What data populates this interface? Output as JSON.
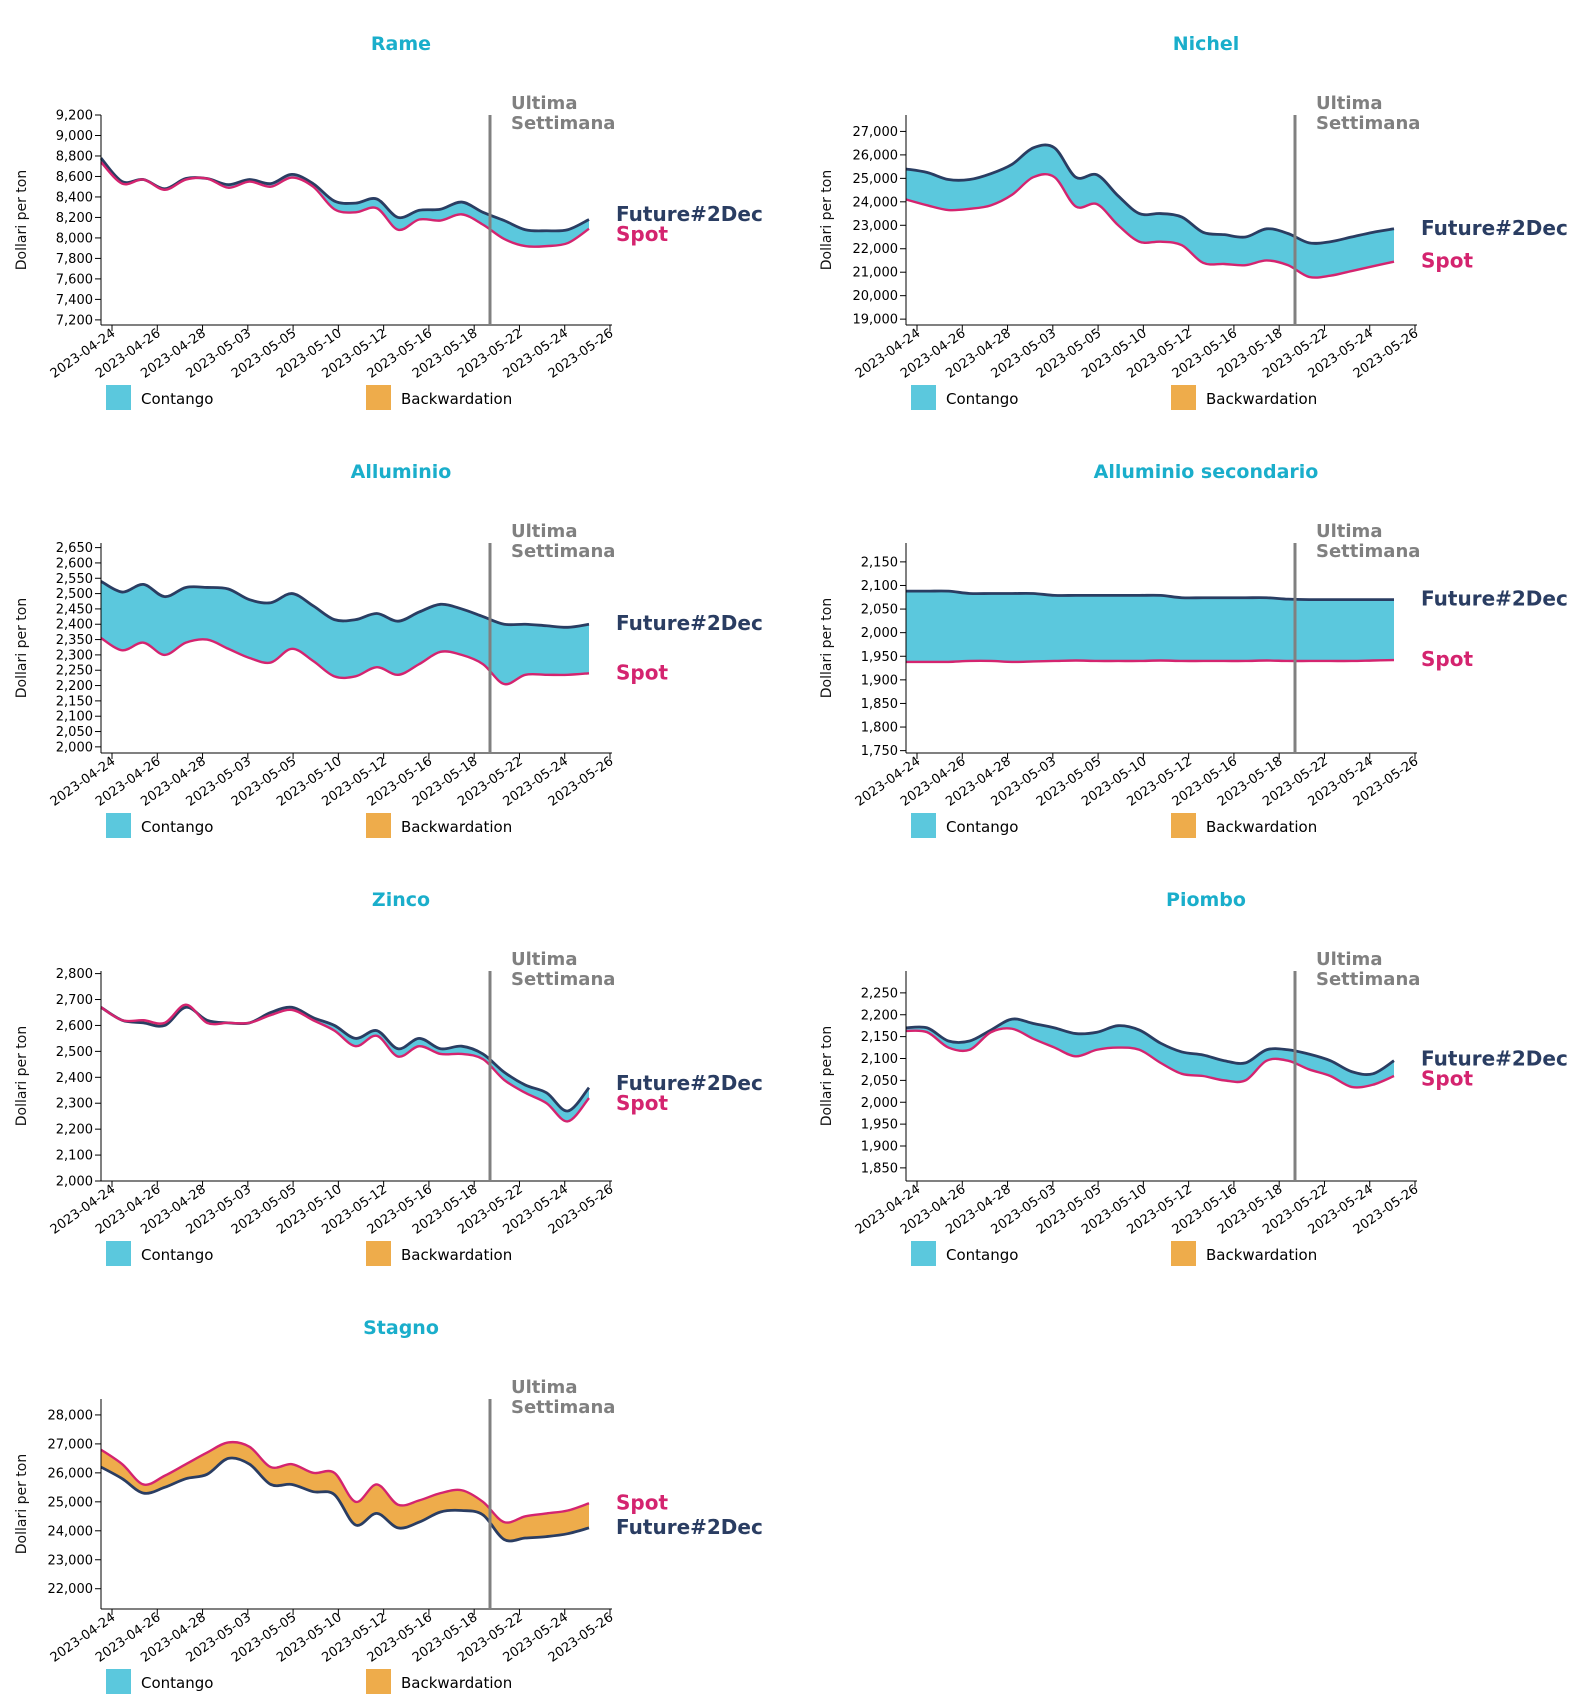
{
  "common": {
    "ylabel": "Dollari per ton",
    "annotation": [
      "Ultima",
      "Settimana"
    ],
    "spot_label": "Spot",
    "future_label": "Future#2Dec",
    "legend": [
      "Contango",
      "Backwardation"
    ],
    "x_ticks": [
      "2023-04-24",
      "2023-04-26",
      "2023-04-28",
      "2023-05-03",
      "2023-05-05",
      "2023-05-10",
      "2023-05-12",
      "2023-05-16",
      "2023-05-18",
      "2023-05-22",
      "2023-05-24",
      "2023-05-26"
    ],
    "dates": [
      "2023-04-24",
      "2023-04-25",
      "2023-04-26",
      "2023-04-27",
      "2023-04-28",
      "2023-05-02",
      "2023-05-03",
      "2023-05-04",
      "2023-05-05",
      "2023-05-08",
      "2023-05-09",
      "2023-05-10",
      "2023-05-11",
      "2023-05-12",
      "2023-05-15",
      "2023-05-16",
      "2023-05-17",
      "2023-05-18",
      "2023-05-19",
      "2023-05-22",
      "2023-05-23",
      "2023-05-24",
      "2023-05-25",
      "2023-05-26"
    ],
    "colors": {
      "title": "#1aaecb",
      "future": "#2a3d62",
      "spot": "#d4246f",
      "contango": "#5bc8dd",
      "backwardation": "#eeac4b",
      "annotation": "#808080"
    }
  },
  "chart_data": [
    {
      "type": "area",
      "title": "Rame",
      "ylim": [
        7150,
        9200
      ],
      "yticks": [
        7200,
        7400,
        7600,
        7800,
        8000,
        8200,
        8400,
        8600,
        8800,
        9000,
        9200
      ],
      "series": [
        {
          "name": "Spot",
          "values": [
            8740,
            8530,
            8570,
            8470,
            8570,
            8580,
            8490,
            8550,
            8500,
            8590,
            8500,
            8280,
            8250,
            8290,
            8080,
            8180,
            8170,
            8230,
            8130,
            7990,
            7920,
            7920,
            7950,
            8090
          ]
        },
        {
          "name": "Future#2Dec",
          "values": [
            8780,
            8550,
            8570,
            8480,
            8580,
            8580,
            8520,
            8570,
            8530,
            8620,
            8530,
            8360,
            8340,
            8380,
            8200,
            8270,
            8280,
            8350,
            8250,
            8170,
            8080,
            8070,
            8080,
            8180
          ]
        }
      ]
    },
    {
      "type": "area",
      "title": "Nichel",
      "ylim": [
        18750,
        27700
      ],
      "yticks": [
        19000,
        20000,
        21000,
        22000,
        23000,
        24000,
        25000,
        26000,
        27000
      ],
      "series": [
        {
          "name": "Spot",
          "values": [
            24100,
            23850,
            23650,
            23700,
            23850,
            24300,
            25050,
            25050,
            23800,
            23900,
            23000,
            22300,
            22300,
            22150,
            21400,
            21350,
            21300,
            21500,
            21300,
            20800,
            20850,
            21050,
            21250,
            21450
          ]
        },
        {
          "name": "Future#2Dec",
          "values": [
            25400,
            25250,
            24950,
            24950,
            25200,
            25600,
            26300,
            26300,
            25050,
            25150,
            24250,
            23500,
            23500,
            23350,
            22700,
            22600,
            22500,
            22850,
            22650,
            22250,
            22300,
            22500,
            22700,
            22850
          ]
        }
      ]
    },
    {
      "type": "area",
      "title": "Alluminio",
      "ylim": [
        1980,
        2665
      ],
      "yticks": [
        2000,
        2050,
        2100,
        2150,
        2200,
        2250,
        2300,
        2350,
        2400,
        2450,
        2500,
        2550,
        2600,
        2650
      ],
      "series": [
        {
          "name": "Spot",
          "values": [
            2355,
            2315,
            2340,
            2300,
            2340,
            2350,
            2320,
            2290,
            2275,
            2320,
            2280,
            2230,
            2230,
            2260,
            2235,
            2270,
            2310,
            2300,
            2270,
            2205,
            2235,
            2235,
            2235,
            2240
          ]
        },
        {
          "name": "Future#2Dec",
          "values": [
            2540,
            2505,
            2530,
            2490,
            2520,
            2520,
            2515,
            2480,
            2470,
            2500,
            2460,
            2415,
            2415,
            2435,
            2410,
            2440,
            2465,
            2450,
            2425,
            2400,
            2400,
            2395,
            2390,
            2400
          ]
        }
      ]
    },
    {
      "type": "area",
      "title": "Alluminio secondario",
      "ylim": [
        1745,
        2190
      ],
      "yticks": [
        1750,
        1800,
        1850,
        1900,
        1950,
        2000,
        2050,
        2100,
        2150
      ],
      "series": [
        {
          "name": "Spot",
          "values": [
            1938,
            1938,
            1938,
            1940,
            1940,
            1938,
            1939,
            1940,
            1941,
            1940,
            1940,
            1940,
            1941,
            1940,
            1940,
            1940,
            1940,
            1941,
            1940,
            1940,
            1940,
            1940,
            1941,
            1942
          ]
        },
        {
          "name": "Future#2Dec",
          "values": [
            2088,
            2088,
            2088,
            2083,
            2083,
            2083,
            2083,
            2079,
            2079,
            2079,
            2079,
            2079,
            2079,
            2074,
            2074,
            2074,
            2074,
            2074,
            2071,
            2070,
            2070,
            2070,
            2070,
            2070
          ]
        }
      ]
    },
    {
      "type": "area",
      "title": "Zinco",
      "ylim": [
        2000,
        2810
      ],
      "yticks": [
        2000,
        2100,
        2200,
        2300,
        2400,
        2500,
        2600,
        2700,
        2800
      ],
      "series": [
        {
          "name": "Spot",
          "values": [
            2670,
            2620,
            2620,
            2610,
            2680,
            2610,
            2610,
            2610,
            2640,
            2660,
            2620,
            2580,
            2520,
            2560,
            2480,
            2520,
            2490,
            2490,
            2470,
            2390,
            2340,
            2300,
            2230,
            2320
          ]
        },
        {
          "name": "Future#2Dec",
          "values": [
            2670,
            2620,
            2610,
            2600,
            2670,
            2620,
            2610,
            2610,
            2650,
            2670,
            2630,
            2600,
            2550,
            2580,
            2510,
            2550,
            2510,
            2520,
            2490,
            2420,
            2370,
            2340,
            2270,
            2360
          ]
        }
      ]
    },
    {
      "type": "area",
      "title": "Piombo",
      "ylim": [
        1820,
        2300
      ],
      "yticks": [
        1850,
        1900,
        1950,
        2000,
        2050,
        2100,
        2150,
        2200,
        2250
      ],
      "series": [
        {
          "name": "Spot",
          "values": [
            2163,
            2160,
            2125,
            2120,
            2160,
            2168,
            2145,
            2125,
            2105,
            2120,
            2125,
            2120,
            2090,
            2065,
            2060,
            2050,
            2050,
            2095,
            2095,
            2075,
            2060,
            2035,
            2040,
            2060
          ]
        },
        {
          "name": "Future#2Dec",
          "values": [
            2170,
            2170,
            2140,
            2140,
            2165,
            2190,
            2180,
            2170,
            2157,
            2160,
            2175,
            2165,
            2135,
            2115,
            2108,
            2095,
            2090,
            2120,
            2120,
            2110,
            2095,
            2070,
            2065,
            2095
          ]
        }
      ]
    },
    {
      "type": "area",
      "title": "Stagno",
      "ylim": [
        21300,
        28550
      ],
      "yticks": [
        22000,
        23000,
        24000,
        25000,
        26000,
        27000,
        28000
      ],
      "series": [
        {
          "name": "Spot",
          "values": [
            26800,
            26300,
            25600,
            25900,
            26300,
            26700,
            27050,
            26900,
            26200,
            26300,
            26000,
            26000,
            25000,
            25600,
            24900,
            25050,
            25300,
            25400,
            25000,
            24300,
            24500,
            24600,
            24700,
            24950
          ]
        },
        {
          "name": "Future#2Dec",
          "values": [
            26200,
            25800,
            25300,
            25500,
            25800,
            25950,
            26500,
            26300,
            25600,
            25600,
            25350,
            25250,
            24200,
            24600,
            24100,
            24300,
            24650,
            24700,
            24550,
            23700,
            23750,
            23800,
            23900,
            24100
          ]
        }
      ]
    }
  ]
}
